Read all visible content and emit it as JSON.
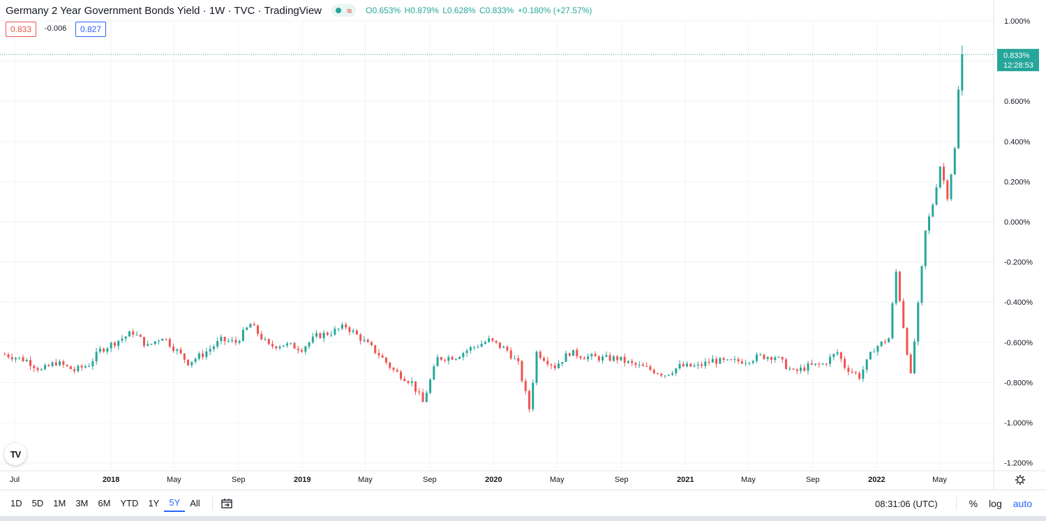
{
  "header": {
    "title": "Germany 2 Year Government Bonds Yield · 1W · TVC · TradingView",
    "open": "O0.653%",
    "high": "H0.879%",
    "low": "L0.628%",
    "close": "C0.833%",
    "change": "+0.180% (+27.57%)"
  },
  "quote": {
    "sell": "0.833",
    "spread": "-0.006",
    "buy": "0.827"
  },
  "last_price": {
    "value": "0.833%",
    "countdown": "12:28:53"
  },
  "range_buttons": [
    "1D",
    "5D",
    "1M",
    "3M",
    "6M",
    "YTD",
    "1Y",
    "5Y",
    "All"
  ],
  "active_range": "5Y",
  "footer": {
    "time": "08:31:06 (UTC)",
    "percent_label": "%",
    "log_label": "log",
    "auto_label": "auto"
  },
  "colors": {
    "up": "#26a69a",
    "down": "#ef5350",
    "grid": "#f0f3fa",
    "accent": "#2962ff"
  },
  "icons": {
    "settings": "gear-icon",
    "date_range": "calendar-range-icon",
    "logo": "tradingview-logo"
  },
  "chart_data": {
    "type": "candlestick",
    "title": "Germany 2 Year Government Bonds Yield",
    "interval": "1W",
    "y_unit": "%",
    "ylim": [
      -1.25,
      1.1
    ],
    "y_ticks": [
      "1.000%",
      "0.600%",
      "0.400%",
      "0.200%",
      "0.000%",
      "-0.200%",
      "-0.400%",
      "-0.600%",
      "-0.800%",
      "-1.000%",
      "-1.200%"
    ],
    "x_ticks": [
      "Jul",
      "2018",
      "May",
      "Sep",
      "2019",
      "May",
      "Sep",
      "2020",
      "May",
      "Sep",
      "2021",
      "May",
      "Sep",
      "2022",
      "May"
    ],
    "x_tick_dates": [
      "2017-07-01",
      "2018-01-01",
      "2018-05-01",
      "2018-09-01",
      "2019-01-01",
      "2019-05-01",
      "2019-09-01",
      "2020-01-01",
      "2020-05-01",
      "2020-09-01",
      "2021-01-01",
      "2021-05-01",
      "2021-09-01",
      "2022-01-01",
      "2022-05-01"
    ],
    "series_close": [
      [
        "2017-06-12",
        -0.66
      ],
      [
        "2017-07-24",
        -0.69
      ],
      [
        "2017-08-21",
        -0.74
      ],
      [
        "2017-09-18",
        -0.7
      ],
      [
        "2017-10-23",
        -0.74
      ],
      [
        "2017-11-20",
        -0.71
      ],
      [
        "2017-12-11",
        -0.64
      ],
      [
        "2018-01-08",
        -0.6
      ],
      [
        "2018-02-12",
        -0.55
      ],
      [
        "2018-03-12",
        -0.62
      ],
      [
        "2018-04-09",
        -0.57
      ],
      [
        "2018-05-28",
        -0.7
      ],
      [
        "2018-06-25",
        -0.66
      ],
      [
        "2018-07-30",
        -0.59
      ],
      [
        "2018-08-27",
        -0.6
      ],
      [
        "2018-09-24",
        -0.51
      ],
      [
        "2018-10-29",
        -0.62
      ],
      [
        "2018-11-26",
        -0.61
      ],
      [
        "2018-12-31",
        -0.63
      ],
      [
        "2019-01-28",
        -0.57
      ],
      [
        "2019-02-25",
        -0.55
      ],
      [
        "2019-03-25",
        -0.52
      ],
      [
        "2019-04-22",
        -0.58
      ],
      [
        "2019-05-27",
        -0.66
      ],
      [
        "2019-06-24",
        -0.74
      ],
      [
        "2019-07-29",
        -0.8
      ],
      [
        "2019-08-19",
        -0.9
      ],
      [
        "2019-09-16",
        -0.68
      ],
      [
        "2019-10-21",
        -0.67
      ],
      [
        "2019-11-18",
        -0.63
      ],
      [
        "2019-12-23",
        -0.59
      ],
      [
        "2020-01-27",
        -0.64
      ],
      [
        "2020-02-17",
        -0.71
      ],
      [
        "2020-03-09",
        -0.93
      ],
      [
        "2020-03-23",
        -0.65
      ],
      [
        "2020-04-27",
        -0.72
      ],
      [
        "2020-05-25",
        -0.65
      ],
      [
        "2020-06-22",
        -0.67
      ],
      [
        "2020-07-27",
        -0.68
      ],
      [
        "2020-08-24",
        -0.68
      ],
      [
        "2020-09-21",
        -0.71
      ],
      [
        "2020-10-19",
        -0.73
      ],
      [
        "2020-11-23",
        -0.76
      ],
      [
        "2020-12-21",
        -0.72
      ],
      [
        "2021-01-25",
        -0.72
      ],
      [
        "2021-02-22",
        -0.69
      ],
      [
        "2021-03-22",
        -0.7
      ],
      [
        "2021-04-26",
        -0.69
      ],
      [
        "2021-05-24",
        -0.67
      ],
      [
        "2021-06-21",
        -0.67
      ],
      [
        "2021-07-26",
        -0.75
      ],
      [
        "2021-08-23",
        -0.72
      ],
      [
        "2021-09-20",
        -0.71
      ],
      [
        "2021-10-18",
        -0.65
      ],
      [
        "2021-11-01",
        -0.72
      ],
      [
        "2021-11-29",
        -0.77
      ],
      [
        "2021-12-27",
        -0.63
      ],
      [
        "2022-01-24",
        -0.58
      ],
      [
        "2022-02-07",
        -0.25
      ],
      [
        "2022-02-21",
        -0.52
      ],
      [
        "2022-03-07",
        -0.77
      ],
      [
        "2022-03-21",
        -0.42
      ],
      [
        "2022-04-04",
        -0.05
      ],
      [
        "2022-04-18",
        0.09
      ],
      [
        "2022-05-02",
        0.28
      ],
      [
        "2022-05-16",
        0.13
      ],
      [
        "2022-05-30",
        0.36
      ],
      [
        "2022-06-06",
        0.653
      ],
      [
        "2022-06-13",
        0.833
      ]
    ],
    "last_candle": {
      "open": 0.653,
      "high": 0.879,
      "low": 0.628,
      "close": 0.833
    }
  }
}
